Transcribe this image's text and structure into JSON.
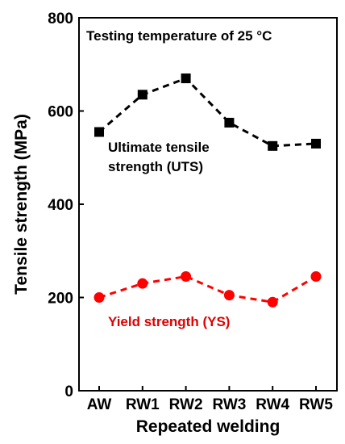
{
  "chart_data": {
    "type": "line",
    "title": "",
    "xlabel": "Repeated welding",
    "ylabel": "Tensile strength (MPa)",
    "categories": [
      "AW",
      "RW1",
      "RW2",
      "RW3",
      "RW4",
      "RW5"
    ],
    "ylim": [
      0,
      800
    ],
    "yticks": [
      "0",
      "200",
      "400",
      "600",
      "800"
    ],
    "grid": false,
    "series": [
      {
        "key": "uts",
        "values": [
          555,
          635,
          670,
          575,
          525,
          530
        ],
        "color": "#000000",
        "marker": "square",
        "line_style": "dashed"
      },
      {
        "key": "ys",
        "values": [
          200,
          230,
          245,
          205,
          190,
          245
        ],
        "color": "#ff0000",
        "marker": "circle",
        "line_style": "dashed"
      }
    ],
    "annotations": {
      "condition": "Testing temperature of 25 °C",
      "uts_line1": "Ultimate tensile",
      "uts_line2": "strength (UTS)",
      "ys": "Yield strength (YS)"
    }
  }
}
